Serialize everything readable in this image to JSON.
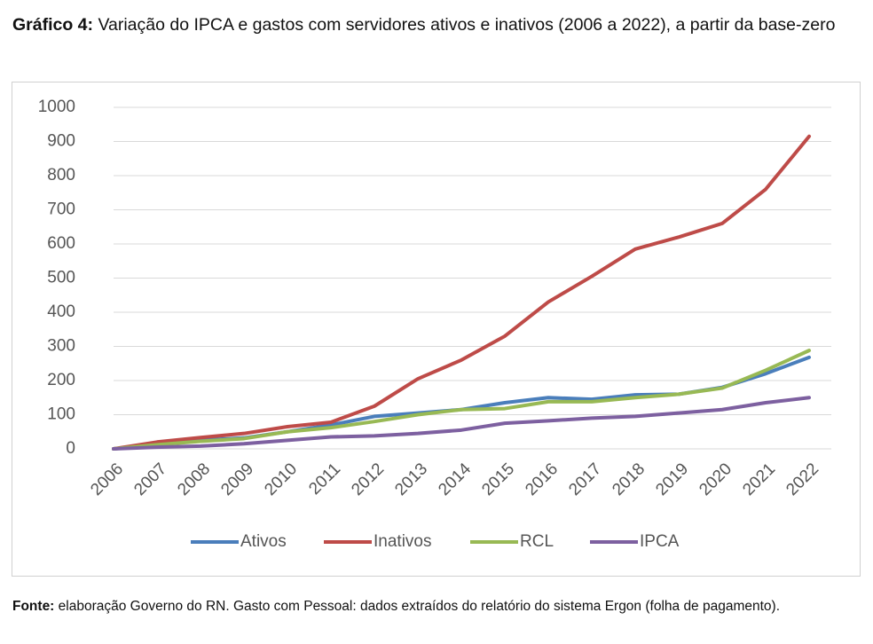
{
  "document": {
    "title_label": "Gráfico 4:",
    "title": "Variação do IPCA e gastos com servidores ativos e inativos (2006 a 2022), a partir da base-zero",
    "source_label": "Fonte:",
    "source": "elaboração Governo do RN. Gasto com Pessoal: dados extraídos do relatório do sistema Ergon (folha de pagamento)."
  },
  "chart_data": {
    "type": "line",
    "categories": [
      "2006",
      "2007",
      "2008",
      "2009",
      "2010",
      "2011",
      "2012",
      "2013",
      "2014",
      "2015",
      "2016",
      "2017",
      "2018",
      "2019",
      "2020",
      "2021",
      "2022"
    ],
    "series": [
      {
        "name": "Ativos",
        "color": "#4a7ebb",
        "values": [
          0,
          12,
          25,
          32,
          50,
          70,
          95,
          105,
          115,
          135,
          150,
          145,
          158,
          160,
          180,
          220,
          268
        ]
      },
      {
        "name": "Inativos",
        "color": "#be4b48",
        "values": [
          0,
          20,
          33,
          45,
          65,
          78,
          125,
          205,
          260,
          330,
          430,
          505,
          585,
          620,
          660,
          760,
          915
        ]
      },
      {
        "name": "RCL",
        "color": "#98b954",
        "values": [
          0,
          12,
          22,
          30,
          50,
          62,
          80,
          100,
          115,
          118,
          138,
          138,
          150,
          160,
          178,
          230,
          288
        ]
      },
      {
        "name": "IPCA",
        "color": "#7d60a0",
        "values": [
          0,
          5,
          8,
          15,
          25,
          35,
          38,
          45,
          55,
          75,
          82,
          90,
          95,
          105,
          115,
          135,
          150
        ]
      }
    ],
    "ylim": [
      0,
      1000
    ],
    "yticks": [
      0,
      100,
      200,
      300,
      400,
      500,
      600,
      700,
      800,
      900,
      1000
    ],
    "grid": true,
    "legend": "bottom"
  }
}
